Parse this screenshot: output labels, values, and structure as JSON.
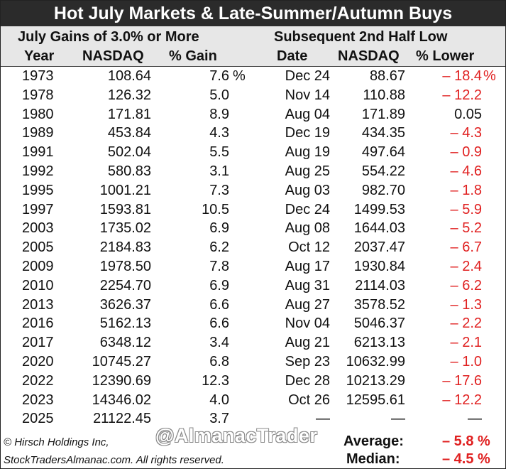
{
  "title": "Hot July Markets & Late-Summer/Autumn Buys",
  "header": {
    "left_group": "July Gains of 3.0% or More",
    "right_group": "Subsequent 2nd Half Low",
    "col_year": "Year",
    "col_nasdaq": "NASDAQ",
    "col_gain": "% Gain",
    "col_date": "Date",
    "col_nasdaq2": "NASDAQ",
    "col_lower": "% Lower"
  },
  "chart_data": {
    "type": "table",
    "title": "Hot July Markets & Late-Summer/Autumn Buys",
    "columns": [
      "Year",
      "NASDAQ",
      "% Gain",
      "Date",
      "NASDAQ",
      "% Lower"
    ],
    "rows": [
      {
        "year": "1973",
        "nasdaq": "108.64",
        "gain": "7.6",
        "gain_pct": "%",
        "date": "Dec 24",
        "low": "88.67",
        "lower": "– 18.4",
        "lower_pct": "%",
        "neg": true
      },
      {
        "year": "1978",
        "nasdaq": "126.32",
        "gain": "5.0",
        "gain_pct": "",
        "date": "Nov 14",
        "low": "110.88",
        "lower": "– 12.2",
        "lower_pct": "",
        "neg": true
      },
      {
        "year": "1980",
        "nasdaq": "171.81",
        "gain": "8.9",
        "gain_pct": "",
        "date": "Aug 04",
        "low": "171.89",
        "lower": "0.05",
        "lower_pct": "",
        "neg": false
      },
      {
        "year": "1989",
        "nasdaq": "453.84",
        "gain": "4.3",
        "gain_pct": "",
        "date": "Dec 19",
        "low": "434.35",
        "lower": "– 4.3",
        "lower_pct": "",
        "neg": true
      },
      {
        "year": "1991",
        "nasdaq": "502.04",
        "gain": "5.5",
        "gain_pct": "",
        "date": "Aug 19",
        "low": "497.64",
        "lower": "– 0.9",
        "lower_pct": "",
        "neg": true
      },
      {
        "year": "1992",
        "nasdaq": "580.83",
        "gain": "3.1",
        "gain_pct": "",
        "date": "Aug 25",
        "low": "554.22",
        "lower": "– 4.6",
        "lower_pct": "",
        "neg": true
      },
      {
        "year": "1995",
        "nasdaq": "1001.21",
        "gain": "7.3",
        "gain_pct": "",
        "date": "Aug 03",
        "low": "982.70",
        "lower": "– 1.8",
        "lower_pct": "",
        "neg": true
      },
      {
        "year": "1997",
        "nasdaq": "1593.81",
        "gain": "10.5",
        "gain_pct": "",
        "date": "Dec 24",
        "low": "1499.53",
        "lower": "– 5.9",
        "lower_pct": "",
        "neg": true
      },
      {
        "year": "2003",
        "nasdaq": "1735.02",
        "gain": "6.9",
        "gain_pct": "",
        "date": "Aug 08",
        "low": "1644.03",
        "lower": "– 5.2",
        "lower_pct": "",
        "neg": true
      },
      {
        "year": "2005",
        "nasdaq": "2184.83",
        "gain": "6.2",
        "gain_pct": "",
        "date": "Oct 12",
        "low": "2037.47",
        "lower": "– 6.7",
        "lower_pct": "",
        "neg": true
      },
      {
        "year": "2009",
        "nasdaq": "1978.50",
        "gain": "7.8",
        "gain_pct": "",
        "date": "Aug 17",
        "low": "1930.84",
        "lower": "– 2.4",
        "lower_pct": "",
        "neg": true
      },
      {
        "year": "2010",
        "nasdaq": "2254.70",
        "gain": "6.9",
        "gain_pct": "",
        "date": "Aug 31",
        "low": "2114.03",
        "lower": "– 6.2",
        "lower_pct": "",
        "neg": true
      },
      {
        "year": "2013",
        "nasdaq": "3626.37",
        "gain": "6.6",
        "gain_pct": "",
        "date": "Aug 27",
        "low": "3578.52",
        "lower": "– 1.3",
        "lower_pct": "",
        "neg": true
      },
      {
        "year": "2016",
        "nasdaq": "5162.13",
        "gain": "6.6",
        "gain_pct": "",
        "date": "Nov 04",
        "low": "5046.37",
        "lower": "– 2.2",
        "lower_pct": "",
        "neg": true
      },
      {
        "year": "2017",
        "nasdaq": "6348.12",
        "gain": "3.4",
        "gain_pct": "",
        "date": "Aug 21",
        "low": "6213.13",
        "lower": "– 2.1",
        "lower_pct": "",
        "neg": true
      },
      {
        "year": "2020",
        "nasdaq": "10745.27",
        "gain": "6.8",
        "gain_pct": "",
        "date": "Sep 23",
        "low": "10632.99",
        "lower": "– 1.0",
        "lower_pct": "",
        "neg": true
      },
      {
        "year": "2022",
        "nasdaq": "12390.69",
        "gain": "12.3",
        "gain_pct": "",
        "date": "Dec 28",
        "low": "10213.29",
        "lower": "– 17.6",
        "lower_pct": "",
        "neg": true
      },
      {
        "year": "2023",
        "nasdaq": "14346.02",
        "gain": "4.0",
        "gain_pct": "",
        "date": "Oct 26",
        "low": "12595.61",
        "lower": "– 12.2",
        "lower_pct": "",
        "neg": true
      },
      {
        "year": "2025",
        "nasdaq": "21122.45",
        "gain": "3.7",
        "gain_pct": "",
        "date": "—",
        "low": "—",
        "lower": "—",
        "lower_pct": "",
        "neg": false
      }
    ]
  },
  "footer": {
    "copyright": "© Hirsch Holdings Inc,",
    "rights": "StockTradersAlmanac.com. All rights reserved.",
    "watermark": "@AlmanacTrader",
    "average_label": "Average:",
    "average_value": "– 5.8 %",
    "median_label": "Median:",
    "median_value": "– 4.5 %"
  },
  "colors": {
    "negative": "#e02020",
    "title_bg": "#2b2b2b",
    "header_bg": "#e7e7e7"
  }
}
